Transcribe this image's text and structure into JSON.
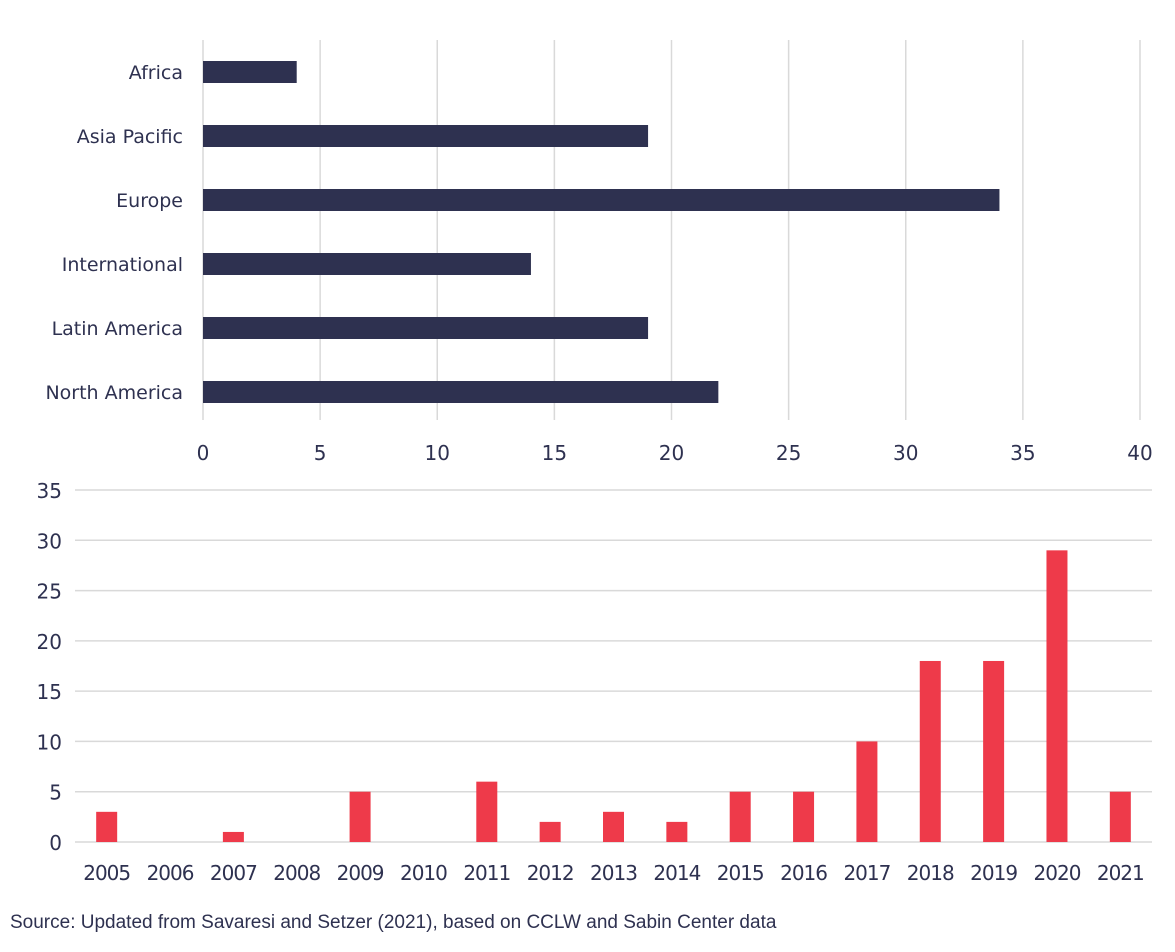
{
  "chart_data": [
    {
      "type": "bar",
      "orientation": "horizontal",
      "categories": [
        "Africa",
        "Asia Pacific",
        "Europe",
        "International",
        "Latin America",
        "North America"
      ],
      "values": [
        4,
        19,
        34,
        14,
        19,
        22
      ],
      "xlim": [
        0,
        40
      ],
      "xticks": [
        0,
        5,
        10,
        15,
        20,
        25,
        30,
        35,
        40
      ],
      "grid": "vertical",
      "color": "#2e3150"
    },
    {
      "type": "bar",
      "categories": [
        "2005",
        "2006",
        "2007",
        "2008",
        "2009",
        "2010",
        "2011",
        "2012",
        "2013",
        "2014",
        "2015",
        "2016",
        "2017",
        "2018",
        "2019",
        "2020",
        "2021"
      ],
      "values": [
        3,
        0,
        1,
        0,
        5,
        0,
        6,
        2,
        3,
        2,
        5,
        5,
        10,
        18,
        18,
        29,
        5
      ],
      "ylim": [
        0,
        35
      ],
      "yticks": [
        0,
        5,
        10,
        15,
        20,
        25,
        30,
        35
      ],
      "grid": "horizontal",
      "color": "#ee3a4a"
    }
  ],
  "source": "Source: Updated from Savaresi and Setzer (2021), based on CCLW and Sabin Center data"
}
